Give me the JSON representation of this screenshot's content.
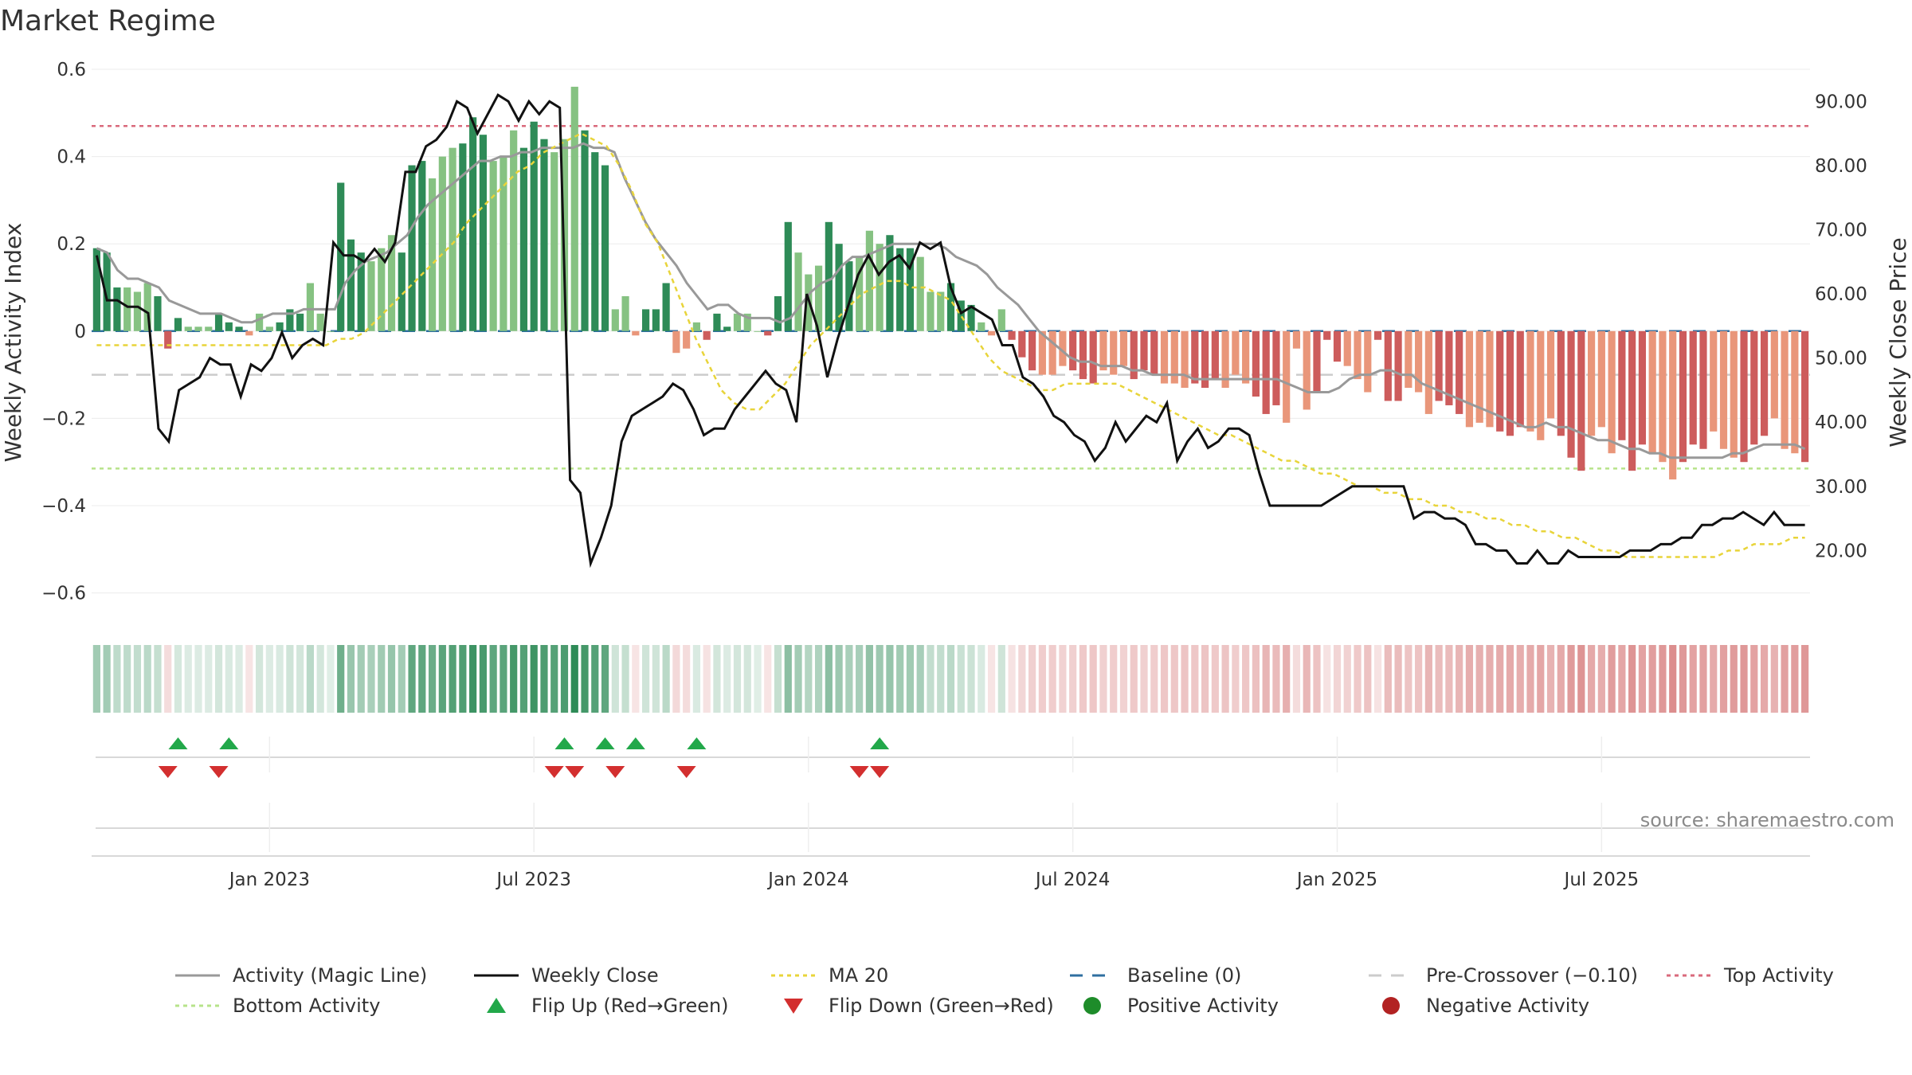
{
  "chart_data": {
    "type": "bar",
    "title": "Market Regime",
    "source": "source: sharemaestro.com",
    "y_left": {
      "label": "Weekly Activity Index",
      "range": [
        -0.65,
        0.6
      ],
      "ticks": [
        0.6,
        0.4,
        0.2,
        0,
        -0.2,
        -0.4,
        -0.6
      ],
      "tick_labels": [
        "0.6",
        "0.4",
        "0.2",
        "0",
        "−0.2",
        "−0.4",
        "−0.6"
      ]
    },
    "y_right": {
      "label": "Weekly Close Price",
      "range": [
        10,
        95
      ],
      "ticks": [
        90,
        80,
        70,
        60,
        50,
        40,
        30,
        20
      ],
      "tick_labels": [
        "90.00",
        "80.00",
        "70.00",
        "60.00",
        "50.00",
        "40.00",
        "30.00",
        "20.00"
      ]
    },
    "x_axis": {
      "ticks": [
        {
          "week": 17,
          "label": "Jan 2023"
        },
        {
          "week": 43,
          "label": "Jul 2023"
        },
        {
          "week": 70,
          "label": "Jan 2024"
        },
        {
          "week": 96,
          "label": "Jul 2024"
        },
        {
          "week": 122,
          "label": "Jan 2025"
        },
        {
          "week": 148,
          "label": "Jul 2025"
        }
      ]
    },
    "reference_lines": {
      "baseline": 0,
      "pre_crossover": -0.1,
      "top_activity": 0.47,
      "bottom_activity": -0.315
    },
    "activity_values": [
      0.19,
      0.18,
      0.1,
      0.1,
      0.09,
      0.11,
      0.08,
      -0.04,
      0.03,
      0.01,
      0.01,
      0.01,
      0.04,
      0.02,
      0.01,
      -0.01,
      0.04,
      0.01,
      0.02,
      0.05,
      0.04,
      0.11,
      0.04,
      0.0,
      0.34,
      0.21,
      0.18,
      0.16,
      0.19,
      0.22,
      0.18,
      0.38,
      0.39,
      0.35,
      0.4,
      0.42,
      0.43,
      0.49,
      0.45,
      0.39,
      0.4,
      0.46,
      0.42,
      0.48,
      0.44,
      0.41,
      0.44,
      0.56,
      0.46,
      0.41,
      0.38,
      0.05,
      0.08,
      -0.01,
      0.05,
      0.05,
      0.11,
      -0.05,
      -0.04,
      0.02,
      -0.02,
      0.04,
      0.01,
      0.04,
      0.04,
      0.0,
      -0.01,
      0.08,
      0.25,
      0.18,
      0.13,
      0.15,
      0.25,
      0.2,
      0.16,
      0.17,
      0.23,
      0.2,
      0.22,
      0.19,
      0.19,
      0.17,
      0.09,
      0.09,
      0.11,
      0.07,
      0.06,
      0.02,
      -0.01,
      0.05,
      -0.02,
      -0.06,
      -0.09,
      -0.1,
      -0.1,
      -0.08,
      -0.09,
      -0.11,
      -0.12,
      -0.09,
      -0.1,
      -0.08,
      -0.11,
      -0.09,
      -0.1,
      -0.12,
      -0.12,
      -0.13,
      -0.12,
      -0.13,
      -0.11,
      -0.13,
      -0.1,
      -0.12,
      -0.15,
      -0.19,
      -0.17,
      -0.21,
      -0.04,
      -0.18,
      -0.14,
      -0.02,
      -0.07,
      -0.08,
      -0.11,
      -0.14,
      -0.02,
      -0.16,
      -0.16,
      -0.13,
      -0.14,
      -0.19,
      -0.16,
      -0.17,
      -0.19,
      -0.22,
      -0.21,
      -0.22,
      -0.23,
      -0.24,
      -0.22,
      -0.23,
      -0.25,
      -0.2,
      -0.24,
      -0.29,
      -0.32,
      -0.24,
      -0.22,
      -0.28,
      -0.25,
      -0.32,
      -0.26,
      -0.28,
      -0.3,
      -0.34,
      -0.3,
      -0.26,
      -0.27,
      -0.23,
      -0.27,
      -0.29,
      -0.3,
      -0.26,
      -0.24,
      -0.2,
      -0.27,
      -0.28,
      -0.3
    ],
    "magic_line": [
      0.19,
      0.18,
      0.14,
      0.12,
      0.12,
      0.11,
      0.1,
      0.07,
      0.06,
      0.05,
      0.04,
      0.04,
      0.04,
      0.03,
      0.02,
      0.02,
      0.03,
      0.04,
      0.04,
      0.04,
      0.05,
      0.05,
      0.05,
      0.05,
      0.11,
      0.14,
      0.16,
      0.17,
      0.18,
      0.2,
      0.22,
      0.26,
      0.29,
      0.31,
      0.33,
      0.35,
      0.37,
      0.39,
      0.39,
      0.4,
      0.4,
      0.41,
      0.41,
      0.42,
      0.42,
      0.42,
      0.42,
      0.43,
      0.42,
      0.42,
      0.41,
      0.35,
      0.3,
      0.25,
      0.21,
      0.18,
      0.15,
      0.11,
      0.08,
      0.05,
      0.06,
      0.06,
      0.04,
      0.03,
      0.03,
      0.03,
      0.02,
      0.03,
      0.06,
      0.09,
      0.11,
      0.12,
      0.15,
      0.17,
      0.17,
      0.18,
      0.19,
      0.2,
      0.2,
      0.2,
      0.2,
      0.2,
      0.19,
      0.17,
      0.16,
      0.15,
      0.13,
      0.1,
      0.08,
      0.06,
      0.03,
      0.0,
      -0.02,
      -0.04,
      -0.06,
      -0.07,
      -0.07,
      -0.08,
      -0.08,
      -0.08,
      -0.09,
      -0.09,
      -0.1,
      -0.1,
      -0.1,
      -0.1,
      -0.11,
      -0.11,
      -0.11,
      -0.11,
      -0.11,
      -0.11,
      -0.11,
      -0.11,
      -0.11,
      -0.12,
      -0.13,
      -0.14,
      -0.14,
      -0.14,
      -0.13,
      -0.11,
      -0.1,
      -0.1,
      -0.09,
      -0.09,
      -0.1,
      -0.1,
      -0.12,
      -0.13,
      -0.14,
      -0.15,
      -0.16,
      -0.17,
      -0.18,
      -0.19,
      -0.2,
      -0.21,
      -0.22,
      -0.22,
      -0.21,
      -0.22,
      -0.22,
      -0.23,
      -0.24,
      -0.25,
      -0.25,
      -0.26,
      -0.27,
      -0.27,
      -0.28,
      -0.28,
      -0.29,
      -0.29,
      -0.29,
      -0.29,
      -0.29,
      -0.29,
      -0.28,
      -0.28,
      -0.27,
      -0.26,
      -0.26,
      -0.26,
      -0.26,
      -0.27
    ],
    "weekly_close": [
      66,
      59,
      59,
      58,
      58,
      57,
      39,
      37,
      45,
      46,
      47,
      50,
      49,
      49,
      44,
      49,
      48,
      50,
      54,
      50,
      52,
      53,
      52,
      68,
      66,
      66,
      65,
      67,
      65,
      68,
      79,
      79,
      83,
      84,
      86,
      90,
      89,
      85,
      88,
      91,
      90,
      87,
      90,
      88,
      90,
      89,
      31,
      29,
      18,
      22,
      27,
      37,
      41,
      42,
      43,
      44,
      46,
      45,
      42,
      38,
      39,
      39,
      42,
      44,
      46,
      48,
      46,
      45,
      40,
      60,
      55,
      47,
      53,
      58,
      63,
      66,
      63,
      65,
      66,
      64,
      68,
      67,
      68,
      61,
      57,
      58,
      57,
      56,
      52,
      52,
      47,
      46,
      44,
      41,
      40,
      38,
      37,
      34,
      36,
      40,
      37,
      39,
      41,
      40,
      43,
      34,
      37,
      39,
      36,
      37,
      39,
      39,
      38,
      32,
      27,
      27,
      27,
      27,
      27,
      27,
      28,
      29,
      30,
      30,
      30,
      30,
      30,
      30,
      25,
      26,
      26,
      25,
      25,
      24,
      21,
      21,
      20,
      20,
      18,
      18,
      20,
      18,
      18,
      20,
      19,
      19,
      19,
      19,
      19,
      20,
      20,
      20,
      21,
      21,
      22,
      22,
      24,
      24,
      25,
      25,
      26,
      25,
      24,
      26,
      24,
      24,
      24
    ],
    "ma20": [
      52,
      52,
      52,
      52,
      52,
      52,
      52,
      52,
      52,
      52,
      52,
      52,
      52,
      52,
      52,
      52,
      52,
      52,
      52,
      53,
      53,
      54,
      56,
      58,
      60,
      62,
      64,
      66,
      68,
      71,
      73,
      75,
      77,
      79,
      80,
      82,
      83,
      84,
      85,
      84,
      83,
      80,
      76,
      71,
      68,
      63,
      58,
      53,
      49,
      45,
      43,
      42,
      42,
      44,
      46,
      49,
      52,
      54,
      56,
      58,
      60,
      61,
      62,
      62,
      61,
      61,
      60,
      59,
      56,
      53,
      50,
      48,
      47,
      46,
      45,
      45,
      46,
      46,
      46,
      46,
      46,
      45,
      44,
      43,
      42,
      41,
      40,
      39,
      38,
      38,
      37,
      36,
      35,
      34,
      34,
      33,
      32,
      32,
      31,
      30,
      30,
      29,
      29,
      28,
      28,
      27,
      27,
      26,
      26,
      25,
      25,
      24,
      24,
      23,
      23,
      22,
      22,
      21,
      20,
      20,
      19,
      19,
      19,
      19,
      19,
      19,
      19,
      19,
      20,
      20,
      21,
      21,
      21,
      22,
      22
    ],
    "regime_strip": {
      "legend_values": [
        "positive",
        "negative"
      ]
    },
    "flip_up_weeks": [
      8,
      13,
      46,
      50,
      53,
      59,
      77
    ],
    "flip_down_weeks": [
      7,
      12,
      45,
      47,
      51,
      58,
      75,
      77
    ],
    "legend": [
      {
        "key": "magic",
        "label": "Activity (Magic Line)",
        "color": "#999999",
        "style": "solid"
      },
      {
        "key": "close",
        "label": "Weekly Close",
        "color": "#111111",
        "style": "solid"
      },
      {
        "key": "ma20",
        "label": "MA 20",
        "color": "#e8d43a",
        "style": "dotted"
      },
      {
        "key": "baseline",
        "label": "Baseline (0)",
        "color": "#2f6fa0",
        "style": "dashed"
      },
      {
        "key": "precross",
        "label": "Pre-Crossover (−0.10)",
        "color": "#cccccc",
        "style": "dashed"
      },
      {
        "key": "top",
        "label": "Top Activity",
        "color": "#d96a7c",
        "style": "dotted"
      },
      {
        "key": "bottom",
        "label": "Bottom Activity",
        "color": "#b7e38a",
        "style": "dotted"
      },
      {
        "key": "flipup",
        "label": "Flip Up (Red→Green)",
        "color": "#22a84a",
        "style": "tri-up"
      },
      {
        "key": "flipdown",
        "label": "Flip Down (Green→Red)",
        "color": "#d32f2f",
        "style": "tri-down"
      },
      {
        "key": "pos",
        "label": "Positive Activity",
        "color": "#1e8c2a",
        "style": "dot"
      },
      {
        "key": "neg",
        "label": "Negative Activity",
        "color": "#b22222",
        "style": "dot"
      }
    ],
    "colors": {
      "pos_dark": "#2e8b57",
      "pos_light": "#86c282",
      "neg_dark": "#cd5c5c",
      "neg_light": "#e9967a"
    }
  }
}
